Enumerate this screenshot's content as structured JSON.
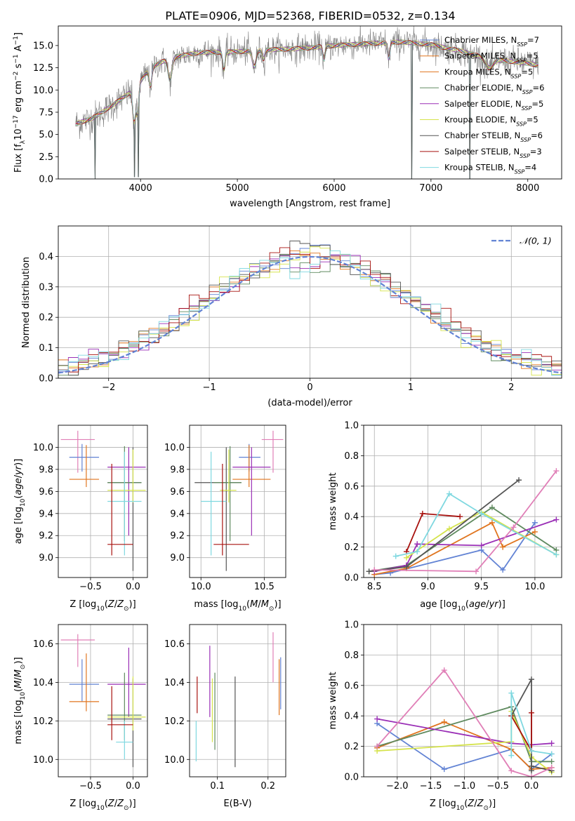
{
  "figure_title": "PLATE=0906, MJD=52368, FIBERID=0532, z=0.134",
  "colors": {
    "blue": "#6283d4",
    "orange": "#e0751f",
    "green": "#5f8a5f",
    "purple": "#9a2fb6",
    "lime": "#d5e34c",
    "dark": "#555555",
    "red": "#a8120f",
    "cyan": "#7fd8e0",
    "pink": "#e07fb7",
    "grey": "#7f7f7f",
    "grid": "#b0b0b0"
  },
  "chart_data": [
    {
      "id": "spectrum",
      "type": "line",
      "title": "PLATE=0906, MJD=52368, FIBERID=0532, z=0.134",
      "xlabel": "wavelength [Angstrom, rest frame]",
      "ylabel": "Flux [f_λ 10^-17 erg cm^-2 s^-1 A^-1]",
      "xlim": [
        3150,
        8350
      ],
      "ylim": [
        0,
        17.2
      ],
      "xticks": [
        4000,
        5000,
        6000,
        7000,
        8000
      ],
      "yticks": [
        0.0,
        2.5,
        5.0,
        7.5,
        10.0,
        12.5,
        15.0
      ],
      "grid": false,
      "legend_position": "upper right",
      "data_range": [
        3330,
        8110
      ],
      "continuum": [
        [
          3330,
          6.2
        ],
        [
          3500,
          6.8
        ],
        [
          3700,
          8.2
        ],
        [
          3900,
          9.8
        ],
        [
          4000,
          11.0
        ],
        [
          4100,
          12.5
        ],
        [
          4300,
          13.6
        ],
        [
          4600,
          14.2
        ],
        [
          5000,
          14.3
        ],
        [
          5300,
          14.5
        ],
        [
          5700,
          14.7
        ],
        [
          6000,
          15.0
        ],
        [
          6500,
          15.3
        ],
        [
          6700,
          15.4
        ],
        [
          7000,
          15.1
        ],
        [
          7300,
          14.4
        ],
        [
          7600,
          13.5
        ],
        [
          8000,
          13.0
        ],
        [
          8110,
          12.8
        ]
      ],
      "absorption_features": [
        [
          3934,
          3.8,
          15
        ],
        [
          3969,
          3.2,
          12
        ],
        [
          4102,
          2.0,
          14
        ],
        [
          4304,
          2.5,
          20
        ],
        [
          4861,
          2.0,
          12
        ],
        [
          5175,
          1.8,
          20
        ],
        [
          5270,
          1.0,
          12
        ],
        [
          5895,
          1.5,
          12
        ],
        [
          6563,
          1.8,
          12
        ],
        [
          7600,
          1.0,
          40
        ]
      ],
      "spikes": [
        [
          3530,
          0.0
        ],
        [
          3935,
          0.2
        ],
        [
          3975,
          0.2
        ],
        [
          6800,
          0.0
        ],
        [
          7400,
          0.0
        ]
      ],
      "series": [
        {
          "name": "Chabrier MILES, N_SSP=7",
          "label_main": "Chabrier MILES, N",
          "label_sub": "SSP",
          "label_end": "=7",
          "color": "blue"
        },
        {
          "name": "Salpeter MILES, N_SSP=5",
          "label_main": "Salpeter MILES, N",
          "label_sub": "SSP",
          "label_end": "=5",
          "color": "orange"
        },
        {
          "name": "Kroupa MILES, N_SSP=5",
          "label_main": "Kroupa MILES, N",
          "label_sub": "SSP",
          "label_end": "=5",
          "color": "orange"
        },
        {
          "name": "Chabrier ELODIE, N_SSP=6",
          "label_main": "Chabrier ELODIE, N",
          "label_sub": "SSP",
          "label_end": "=6",
          "color": "green"
        },
        {
          "name": "Salpeter ELODIE, N_SSP=5",
          "label_main": "Salpeter ELODIE, N",
          "label_sub": "SSP",
          "label_end": "=5",
          "color": "purple"
        },
        {
          "name": "Kroupa ELODIE, N_SSP=5",
          "label_main": "Kroupa ELODIE, N",
          "label_sub": "SSP",
          "label_end": "=5",
          "color": "lime"
        },
        {
          "name": "Chabrier STELIB, N_SSP=6",
          "label_main": "Chabrier STELIB, N",
          "label_sub": "SSP",
          "label_end": "=6",
          "color": "dark"
        },
        {
          "name": "Salpeter STELIB, N_SSP=3",
          "label_main": "Salpeter STELIB, N",
          "label_sub": "SSP",
          "label_end": "=3",
          "color": "red"
        },
        {
          "name": "Kroupa STELIB, N_SSP=4",
          "label_main": "Kroupa STELIB, N",
          "label_sub": "SSP",
          "label_end": "=4",
          "color": "cyan"
        }
      ]
    },
    {
      "id": "residuals",
      "type": "line",
      "xlabel": "(data-model)/error",
      "ylabel": "Normed distribution",
      "xlim": [
        -2.5,
        2.5
      ],
      "ylim": [
        0,
        0.5
      ],
      "xticks": [
        -2,
        -1,
        0,
        1,
        2
      ],
      "yticks": [
        0.0,
        0.1,
        0.2,
        0.3,
        0.4
      ],
      "grid": true,
      "legend_position": "upper right",
      "reference_curve": {
        "name": "𝒩(0, 1)",
        "mean": 0,
        "sigma": 1,
        "color": "blue"
      },
      "bin_width": 0.1
    },
    {
      "id": "age_vs_Z",
      "type": "scatter",
      "xlabel": "Z [log10(Z/Z⊙)]",
      "ylabel": "age [log10(age/yr)]",
      "xlim": [
        -0.88,
        0.17
      ],
      "ylim": [
        8.82,
        10.2
      ],
      "xticks": [
        -0.5,
        0.0
      ],
      "yticks": [
        9.0,
        9.2,
        9.4,
        9.6,
        9.8,
        10.0
      ],
      "grid": true,
      "points": [
        {
          "color": "pink",
          "x": -0.65,
          "x_lo": -0.85,
          "x_hi": -0.45,
          "y": 10.07,
          "y_lo": 9.77,
          "y_hi": 10.15
        },
        {
          "color": "blue",
          "x": -0.6,
          "x_lo": -0.75,
          "x_hi": -0.4,
          "y": 9.91,
          "y_lo": 9.78,
          "y_hi": 10.03
        },
        {
          "color": "orange",
          "x": -0.55,
          "x_lo": -0.75,
          "x_hi": -0.4,
          "y": 9.71,
          "y_lo": 9.64,
          "y_hi": 10.02
        },
        {
          "color": "purple",
          "x": -0.05,
          "x_lo": -0.3,
          "x_hi": 0.15,
          "y": 9.82,
          "y_lo": 9.2,
          "y_hi": 10.0
        },
        {
          "color": "dark",
          "x": 0.0,
          "x_lo": -0.3,
          "x_hi": 0.1,
          "y": 9.68,
          "y_lo": 8.88,
          "y_hi": 10.0
        },
        {
          "color": "green",
          "x": -0.1,
          "x_lo": -0.3,
          "x_hi": 0.1,
          "y": 9.68,
          "y_lo": 9.15,
          "y_hi": 10.01
        },
        {
          "color": "lime",
          "x": 0.0,
          "x_lo": -0.3,
          "x_hi": 0.15,
          "y": 9.61,
          "y_lo": 9.5,
          "y_hi": 9.98
        },
        {
          "color": "cyan",
          "x": -0.1,
          "x_lo": -0.3,
          "x_hi": 0.1,
          "y": 9.51,
          "y_lo": 9.02,
          "y_hi": 9.96
        },
        {
          "color": "red",
          "x": -0.25,
          "x_lo": -0.3,
          "x_hi": 0.0,
          "y": 9.12,
          "y_lo": 9.02,
          "y_hi": 9.85
        }
      ]
    },
    {
      "id": "age_vs_mass",
      "type": "scatter",
      "xlabel": "mass [log10(M/M⊙)]",
      "ylabel": "",
      "xlim": [
        9.91,
        10.67
      ],
      "ylim": [
        8.82,
        10.2
      ],
      "xticks": [
        10.0,
        10.5
      ],
      "yticks": [
        9.0,
        9.2,
        9.4,
        9.6,
        9.8,
        10.0
      ],
      "grid": true,
      "points": [
        {
          "color": "pink",
          "x": 10.57,
          "x_lo": 10.48,
          "x_hi": 10.65,
          "y": 10.07,
          "y_lo": 9.77,
          "y_hi": 10.15
        },
        {
          "color": "blue",
          "x": 10.38,
          "x_lo": 10.3,
          "x_hi": 10.47,
          "y": 9.91,
          "y_lo": 9.78,
          "y_hi": 10.03
        },
        {
          "color": "orange",
          "x": 10.38,
          "x_lo": 10.25,
          "x_hi": 10.55,
          "y": 9.71,
          "y_lo": 9.64,
          "y_hi": 10.02
        },
        {
          "color": "purple",
          "x": 10.4,
          "x_lo": 10.25,
          "x_hi": 10.55,
          "y": 9.82,
          "y_lo": 9.2,
          "y_hi": 10.0
        },
        {
          "color": "dark",
          "x": 10.2,
          "x_lo": 9.95,
          "x_hi": 10.32,
          "y": 9.68,
          "y_lo": 8.88,
          "y_hi": 10.0
        },
        {
          "color": "green",
          "x": 10.23,
          "x_lo": 10.1,
          "x_hi": 10.32,
          "y": 9.68,
          "y_lo": 9.15,
          "y_hi": 10.01
        },
        {
          "color": "lime",
          "x": 10.22,
          "x_lo": 10.15,
          "x_hi": 10.28,
          "y": 9.61,
          "y_lo": 9.5,
          "y_hi": 9.98
        },
        {
          "color": "cyan",
          "x": 10.08,
          "x_lo": 10.0,
          "x_hi": 10.2,
          "y": 9.51,
          "y_lo": 9.02,
          "y_hi": 9.96
        },
        {
          "color": "red",
          "x": 10.17,
          "x_lo": 10.1,
          "x_hi": 10.38,
          "y": 9.12,
          "y_lo": 9.02,
          "y_hi": 9.85
        }
      ]
    },
    {
      "id": "weight_vs_age",
      "type": "line",
      "xlabel": "age [log10(age/yr)]",
      "ylabel": "mass weight",
      "xlim": [
        8.4,
        10.25
      ],
      "ylim": [
        0,
        1
      ],
      "xticks": [
        8.5,
        9.0,
        9.5,
        10.0
      ],
      "yticks": [
        0.0,
        0.2,
        0.4,
        0.6,
        0.8,
        1.0
      ],
      "grid": true,
      "series": [
        {
          "color": "blue",
          "x": [
            8.5,
            8.65,
            9.5,
            9.7,
            10.0
          ],
          "y": [
            0.02,
            0.03,
            0.18,
            0.05,
            0.36
          ]
        },
        {
          "color": "orange",
          "x": [
            8.5,
            8.8,
            9.6,
            9.7,
            10.0
          ],
          "y": [
            0.02,
            0.06,
            0.36,
            0.2,
            0.3
          ]
        },
        {
          "color": "green",
          "x": [
            8.45,
            8.8,
            9.6,
            10.2
          ],
          "y": [
            0.04,
            0.08,
            0.46,
            0.18
          ]
        },
        {
          "color": "purple",
          "x": [
            8.5,
            8.8,
            8.9,
            9.5,
            10.2
          ],
          "y": [
            0.04,
            0.08,
            0.22,
            0.21,
            0.38
          ]
        },
        {
          "color": "lime",
          "x": [
            8.8,
            9.2,
            9.5,
            10.2
          ],
          "y": [
            0.13,
            0.32,
            0.43,
            0.15
          ]
        },
        {
          "color": "dark",
          "x": [
            8.45,
            8.8,
            9.85
          ],
          "y": [
            0.04,
            0.07,
            0.64
          ]
        },
        {
          "color": "red",
          "x": [
            8.8,
            8.95,
            9.3
          ],
          "y": [
            0.17,
            0.42,
            0.4
          ]
        },
        {
          "color": "cyan",
          "x": [
            8.7,
            8.9,
            9.2,
            9.5,
            10.2
          ],
          "y": [
            0.14,
            0.17,
            0.55,
            0.42,
            0.15
          ]
        },
        {
          "color": "pink",
          "x": [
            8.5,
            9.45,
            9.8,
            10.2
          ],
          "y": [
            0.05,
            0.04,
            0.33,
            0.7
          ]
        }
      ]
    },
    {
      "id": "mass_vs_Z",
      "type": "scatter",
      "xlabel": "Z [log10(Z/Z⊙)]",
      "ylabel": "mass [log10(M/M⊙)]",
      "xlim": [
        -0.88,
        0.17
      ],
      "ylim": [
        9.91,
        10.7
      ],
      "xticks": [
        -0.5,
        0.0
      ],
      "yticks": [
        10.0,
        10.2,
        10.4,
        10.6
      ],
      "grid": true,
      "points": [
        {
          "color": "pink",
          "x": -0.65,
          "x_lo": -0.85,
          "x_hi": -0.45,
          "y": 10.62,
          "y_lo": 10.48,
          "y_hi": 10.65
        },
        {
          "color": "blue",
          "x": -0.6,
          "x_lo": -0.75,
          "x_hi": -0.4,
          "y": 10.39,
          "y_lo": 10.3,
          "y_hi": 10.52
        },
        {
          "color": "orange",
          "x": -0.55,
          "x_lo": -0.75,
          "x_hi": -0.4,
          "y": 10.3,
          "y_lo": 10.25,
          "y_hi": 10.55
        },
        {
          "color": "purple",
          "x": -0.05,
          "x_lo": -0.3,
          "x_hi": 0.15,
          "y": 10.39,
          "y_lo": 10.22,
          "y_hi": 10.58
        },
        {
          "color": "dark",
          "x": 0.0,
          "x_lo": -0.3,
          "x_hi": 0.1,
          "y": 10.21,
          "y_lo": 9.96,
          "y_hi": 10.42
        },
        {
          "color": "green",
          "x": -0.1,
          "x_lo": -0.3,
          "x_hi": 0.1,
          "y": 10.23,
          "y_lo": 10.1,
          "y_hi": 10.45
        },
        {
          "color": "lime",
          "x": 0.0,
          "x_lo": -0.3,
          "x_hi": 0.15,
          "y": 10.22,
          "y_lo": 10.15,
          "y_hi": 10.43
        },
        {
          "color": "cyan",
          "x": -0.1,
          "x_lo": -0.2,
          "x_hi": 0.0,
          "y": 10.09,
          "y_lo": 10.0,
          "y_hi": 10.2
        },
        {
          "color": "red",
          "x": -0.25,
          "x_lo": -0.3,
          "x_hi": 0.0,
          "y": 10.18,
          "y_lo": 10.1,
          "y_hi": 10.38
        }
      ]
    },
    {
      "id": "mass_vs_EBV",
      "type": "scatter",
      "xlabel": "E(B-V)",
      "ylabel": "",
      "xlim": [
        0.045,
        0.235
      ],
      "ylim": [
        9.91,
        10.7
      ],
      "xticks": [
        0.1,
        0.2
      ],
      "yticks": [
        10.0,
        10.2,
        10.4,
        10.6
      ],
      "grid": true,
      "points": [
        {
          "color": "cyan",
          "x": 0.058,
          "y": 10.08,
          "y_lo": 9.99,
          "y_hi": 10.2
        },
        {
          "color": "red",
          "x": 0.06,
          "y": 10.32,
          "y_lo": 10.24,
          "y_hi": 10.43
        },
        {
          "color": "purple",
          "x": 0.085,
          "y": 10.4,
          "y_lo": 10.22,
          "y_hi": 10.59
        },
        {
          "color": "lime",
          "x": 0.09,
          "y": 10.22,
          "y_lo": 10.09,
          "y_hi": 10.42
        },
        {
          "color": "green",
          "x": 0.095,
          "y": 10.23,
          "y_lo": 10.05,
          "y_hi": 10.45
        },
        {
          "color": "dark",
          "x": 0.135,
          "y": 10.2,
          "y_lo": 9.96,
          "y_hi": 10.43
        },
        {
          "color": "pink",
          "x": 0.21,
          "y": 10.6,
          "y_lo": 10.4,
          "y_hi": 10.66
        },
        {
          "color": "orange",
          "x": 0.222,
          "y": 10.34,
          "y_lo": 10.23,
          "y_hi": 10.52
        },
        {
          "color": "blue",
          "x": 0.225,
          "y": 10.39,
          "y_lo": 10.26,
          "y_hi": 10.53
        }
      ]
    },
    {
      "id": "weight_vs_Z",
      "type": "line",
      "xlabel": "Z [log10(Z/Z⊙)]",
      "ylabel": "mass weight",
      "xlim": [
        -2.5,
        0.45
      ],
      "ylim": [
        0,
        1
      ],
      "xticks": [
        -2.0,
        -1.5,
        -1.0,
        -0.5,
        0.0
      ],
      "yticks": [
        0.0,
        0.2,
        0.4,
        0.6,
        0.8,
        1.0
      ],
      "grid": true,
      "series": [
        {
          "color": "blue",
          "x": [
            -2.3,
            -1.3,
            -0.3,
            0.0,
            0.3
          ],
          "y": [
            0.35,
            0.05,
            0.18,
            0.05,
            0.15
          ]
        },
        {
          "color": "orange",
          "x": [
            -2.3,
            -1.3,
            -0.3,
            0.0,
            0.3
          ],
          "y": [
            0.19,
            0.36,
            0.18,
            0.05,
            0.06
          ]
        },
        {
          "color": "green",
          "x": [
            -2.3,
            -0.3,
            0.0,
            0.3
          ],
          "y": [
            0.2,
            0.46,
            0.1,
            0.1
          ]
        },
        {
          "color": "purple",
          "x": [
            -2.3,
            -0.3,
            0.0,
            0.3
          ],
          "y": [
            0.38,
            0.22,
            0.21,
            0.22
          ]
        },
        {
          "color": "lime",
          "x": [
            -2.3,
            -0.3,
            -0.3,
            0.0,
            0.3
          ],
          "y": [
            0.17,
            0.23,
            0.43,
            0.13,
            0.03
          ]
        },
        {
          "color": "dark",
          "x": [
            -0.3,
            0.0,
            0.0,
            0.0,
            0.3
          ],
          "y": [
            0.4,
            0.64,
            0.04,
            0.07,
            0.04
          ]
        },
        {
          "color": "red",
          "x": [
            -0.3,
            0.0,
            0.0
          ],
          "y": [
            0.4,
            0.17,
            0.42
          ]
        },
        {
          "color": "cyan",
          "x": [
            -0.3,
            -0.3,
            0.0,
            0.3
          ],
          "y": [
            0.14,
            0.55,
            0.17,
            0.15
          ]
        },
        {
          "color": "pink",
          "x": [
            -2.3,
            -1.3,
            -0.3,
            0.0,
            0.3
          ],
          "y": [
            0.2,
            0.7,
            0.04,
            0.0,
            0.06
          ]
        }
      ]
    }
  ]
}
